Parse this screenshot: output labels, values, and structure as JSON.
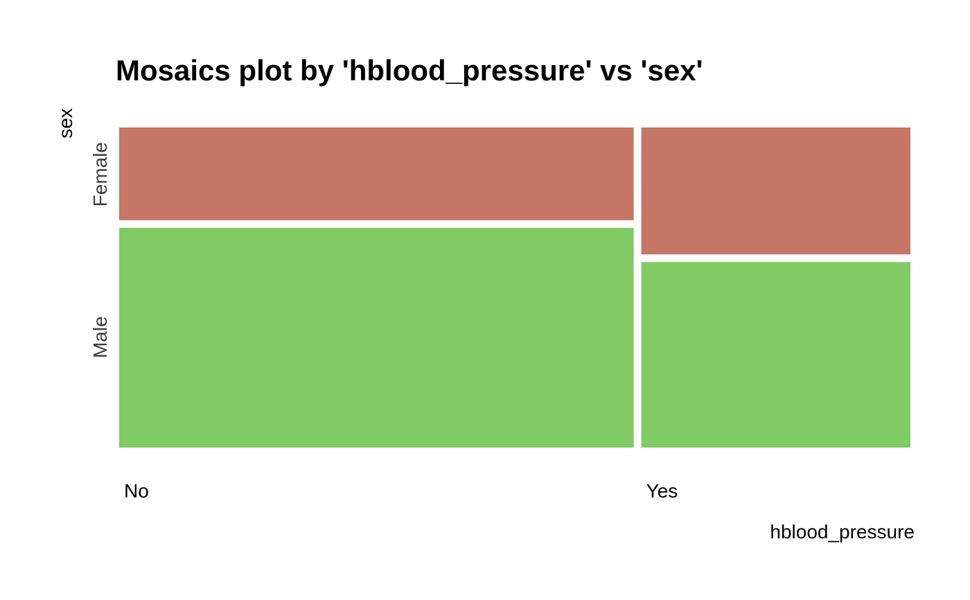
{
  "chart_data": {
    "type": "mosaic",
    "title": "Mosaics plot by 'hblood_pressure' vs 'sex'",
    "xlabel": "hblood_pressure",
    "ylabel": "sex",
    "x_categories": [
      "No",
      "Yes"
    ],
    "x_proportions": [
      0.654,
      0.346
    ],
    "y_categories": [
      "Male",
      "Female"
    ],
    "cells": [
      {
        "x": "No",
        "y": "Female",
        "proportion": 0.305
      },
      {
        "x": "No",
        "y": "Male",
        "proportion": 0.695
      },
      {
        "x": "Yes",
        "y": "Female",
        "proportion": 0.41
      },
      {
        "x": "Yes",
        "y": "Male",
        "proportion": 0.59
      }
    ],
    "colors": {
      "Female": "#c57665",
      "Male": "#80cb63"
    },
    "grid": false,
    "legend": "none"
  }
}
